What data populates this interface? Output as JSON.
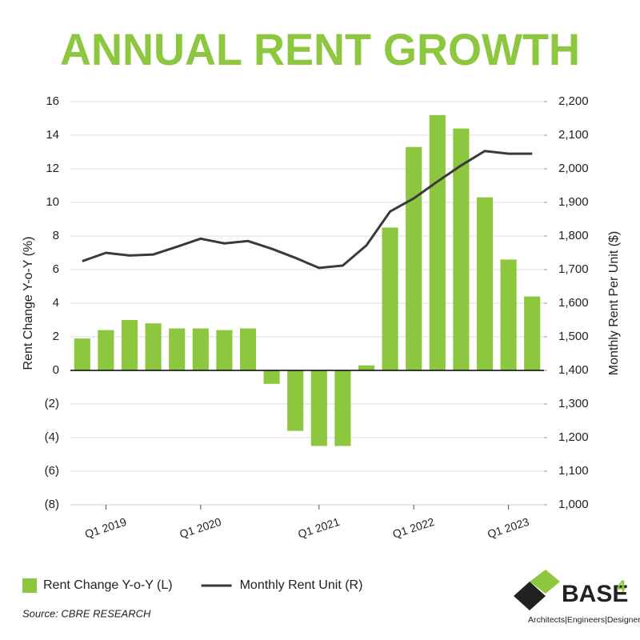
{
  "chart_data": {
    "type": "bar_line",
    "title": "ANNUAL RENT GROWTH",
    "ylabel": "Rent Change Y-o-Y (%)",
    "y2label": "Monthly Rent Per Unit ($)",
    "categories": [
      null,
      "Q1 2019",
      null,
      null,
      null,
      "Q1 2020",
      null,
      null,
      null,
      null,
      "Q1 2021",
      null,
      null,
      null,
      "Q1 2022",
      null,
      null,
      null,
      "Q1 2023",
      null
    ],
    "series": [
      {
        "name": "Rent Change Y-o-Y (L)",
        "type": "bar",
        "color": "#8dc63f",
        "values": [
          1.9,
          2.4,
          3.0,
          2.8,
          2.5,
          2.5,
          2.4,
          2.5,
          -0.8,
          -3.6,
          -4.5,
          -4.5,
          0.3,
          8.5,
          13.3,
          15.2,
          14.4,
          10.3,
          6.6,
          4.4
        ]
      },
      {
        "name": "Monthly Rent Unit (R)",
        "type": "line",
        "axis": "y2",
        "color": "#3a3a3a",
        "values": [
          1725,
          1750,
          1742,
          1745,
          1768,
          1792,
          1778,
          1785,
          1762,
          1735,
          1705,
          1712,
          1772,
          1873,
          1912,
          1962,
          2010,
          2053,
          2045,
          2045
        ]
      }
    ],
    "ylim": [
      -8,
      16
    ],
    "yticks": [
      {
        "value": -8,
        "label": "(8)"
      },
      {
        "value": -6,
        "label": "(6)"
      },
      {
        "value": -4,
        "label": "(4)"
      },
      {
        "value": -2,
        "label": "(2)"
      },
      0,
      2,
      4,
      6,
      8,
      10,
      12,
      14,
      16
    ],
    "y2lim": [
      1000,
      2200
    ],
    "y2ticks": [
      {
        "value": 1000,
        "label": "1,000"
      },
      {
        "value": 1100,
        "label": "1,100"
      },
      {
        "value": 1200,
        "label": "1,200"
      },
      {
        "value": 1300,
        "label": "1,300"
      },
      {
        "value": 1400,
        "label": "1,400"
      },
      {
        "value": 1500,
        "label": "1,500"
      },
      {
        "value": 1600,
        "label": "1,600"
      },
      {
        "value": 1700,
        "label": "1,700"
      },
      {
        "value": 1800,
        "label": "1,800"
      },
      {
        "value": 1900,
        "label": "1,900"
      },
      {
        "value": 2000,
        "label": "2,000"
      },
      {
        "value": 2100,
        "label": "2,100"
      },
      {
        "value": 2200,
        "label": "2,200"
      }
    ],
    "grid": true,
    "legend": "bottom",
    "source": "Source: CBRE RESEARCH",
    "logo": {
      "name": "BASE",
      "number": "4",
      "tagline": "Architects|Engineers|Designers"
    }
  }
}
